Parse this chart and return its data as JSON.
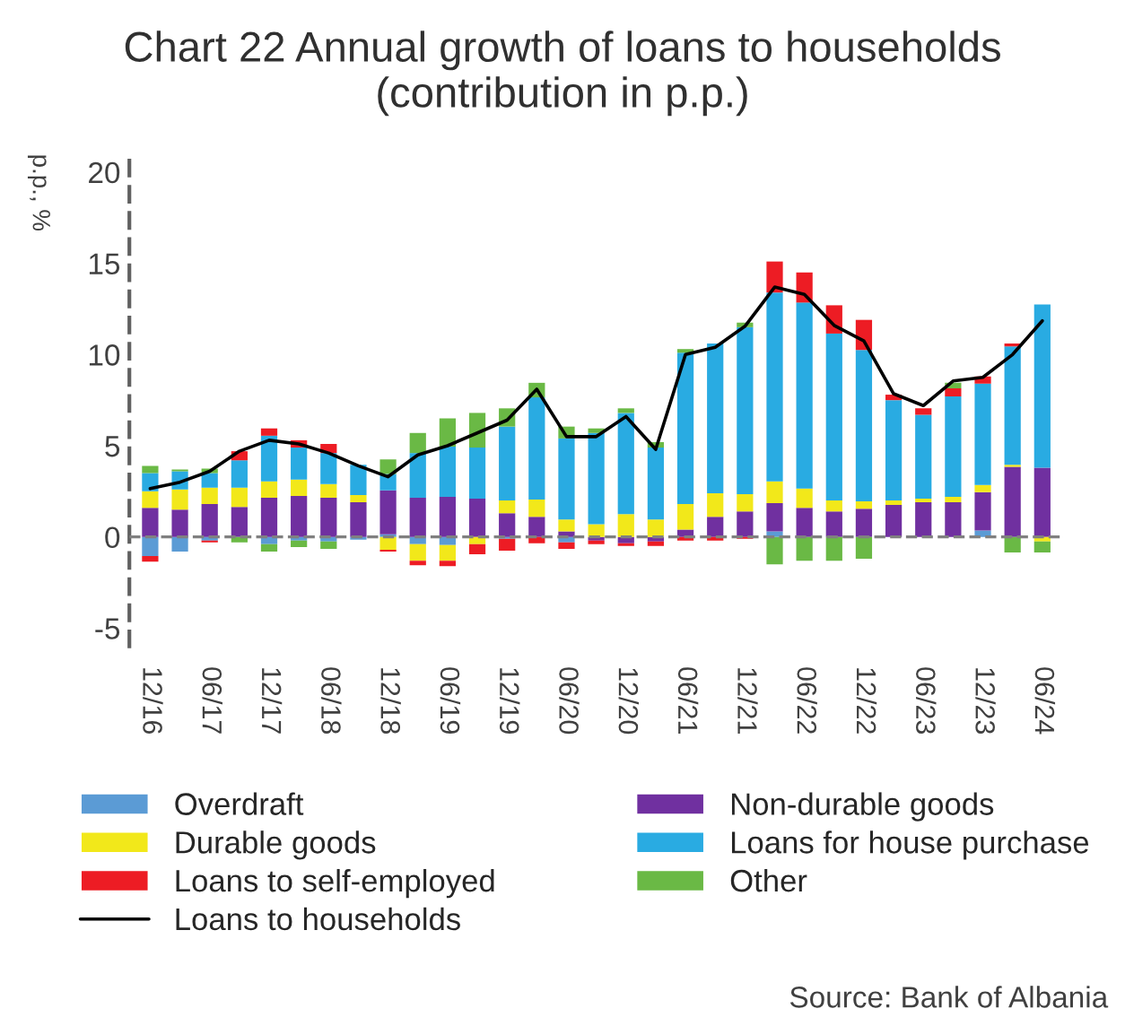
{
  "chart_data": {
    "type": "bar",
    "title": "Chart 22 Annual growth of loans to households\n(contribution in p.p.)",
    "ylabel": "p.p., %",
    "categories": [
      "12/16",
      null,
      "06/17",
      null,
      "12/17",
      null,
      "06/18",
      null,
      "12/18",
      null,
      "06/19",
      null,
      "12/19",
      null,
      "06/20",
      null,
      "12/20",
      null,
      "06/21",
      null,
      "12/21",
      null,
      "06/22",
      null,
      "12/22",
      null,
      "06/23",
      null,
      "12/23",
      null,
      "06/24"
    ],
    "stacked": true,
    "series": [
      {
        "name": "Overdraft",
        "color": "#5b9bd5",
        "values": [
          -1.05,
          -0.8,
          -0.2,
          0,
          -0.4,
          -0.2,
          -0.25,
          -0.15,
          0.15,
          -0.4,
          -0.45,
          0,
          -0.1,
          0,
          -0.3,
          0,
          0,
          0,
          0,
          0,
          0,
          0.3,
          0,
          null,
          0,
          0,
          0,
          0,
          0.35,
          0,
          0
        ]
      },
      {
        "name": "Non-durable goods",
        "color": "#7030a0",
        "values": [
          1.6,
          1.5,
          1.8,
          1.65,
          2.15,
          2.25,
          2.15,
          1.9,
          2.4,
          2.15,
          2.2,
          2.1,
          1.3,
          1.1,
          0.3,
          -0.2,
          -0.35,
          -0.25,
          0.4,
          1.1,
          1.4,
          1.55,
          1.6,
          1.4,
          1.55,
          1.75,
          1.9,
          1.9,
          2.1,
          3.85,
          3.8
        ]
      },
      {
        "name": "Durable goods",
        "color": "#f2e81a",
        "values": [
          0.9,
          1.1,
          0.9,
          1.05,
          0.9,
          0.9,
          0.75,
          0.4,
          -0.7,
          -0.9,
          -0.85,
          -0.4,
          0.7,
          0.95,
          0.65,
          0.7,
          1.25,
          0.95,
          1.4,
          1.3,
          0.95,
          1.2,
          1.05,
          0.6,
          0.4,
          0.25,
          0.2,
          0.3,
          0.4,
          0.1,
          -0.25
        ]
      },
      {
        "name": "Loans for house purchase",
        "color": "#29abe2",
        "values": [
          1.0,
          1.0,
          0.8,
          1.5,
          2.5,
          1.75,
          1.7,
          1.65,
          0.9,
          2.45,
          2.75,
          2.8,
          4.05,
          5.6,
          4.45,
          5.0,
          5.55,
          3.95,
          8.3,
          8.2,
          9.15,
          10.35,
          10.2,
          9.15,
          8.3,
          5.5,
          4.6,
          5.5,
          5.55,
          6.5,
          8.95
        ]
      },
      {
        "name": "Loans to self-employed",
        "color": "#ed1c24",
        "values": [
          -0.3,
          0,
          -0.1,
          0.5,
          0.4,
          0.4,
          0.5,
          0,
          -0.1,
          -0.25,
          -0.3,
          -0.55,
          -0.65,
          -0.35,
          -0.35,
          -0.2,
          -0.15,
          -0.25,
          -0.2,
          -0.2,
          -0.1,
          1.7,
          1.65,
          1.55,
          1.65,
          0.3,
          0.35,
          0.45,
          0.4,
          0.15,
          0
        ]
      },
      {
        "name": "Other",
        "color": "#6ab945",
        "values": [
          0.4,
          0.1,
          0.25,
          -0.3,
          -0.4,
          -0.35,
          -0.4,
          0,
          0.8,
          1.1,
          1.55,
          1.9,
          1.0,
          0.8,
          0.65,
          0.25,
          0.25,
          0.3,
          0.2,
          0,
          0.25,
          -1.5,
          -1.3,
          -1.3,
          -1.2,
          0,
          0,
          0.3,
          0,
          -0.85,
          -0.6
        ]
      },
      {
        "name": "Loans to households",
        "type": "line",
        "color": "#000000",
        "values": [
          2.65,
          3.0,
          3.6,
          4.7,
          5.3,
          5.1,
          4.6,
          3.9,
          3.3,
          4.5,
          5.0,
          5.7,
          6.4,
          8.1,
          5.5,
          5.5,
          6.6,
          4.8,
          10.0,
          10.4,
          11.55,
          13.7,
          13.3,
          11.6,
          10.75,
          7.85,
          7.2,
          8.55,
          8.75,
          10.0,
          11.85
        ]
      }
    ],
    "ylim": [
      -6,
      21
    ],
    "yticks": [
      -5,
      0,
      5,
      10,
      15,
      20
    ],
    "ref_lines": [
      {
        "axis": "y",
        "value": 0,
        "color": "#808080",
        "line_style": "dashed"
      }
    ],
    "legend": "bottom",
    "grid": false,
    "annotations": [
      "Source: Bank of Albania"
    ]
  }
}
